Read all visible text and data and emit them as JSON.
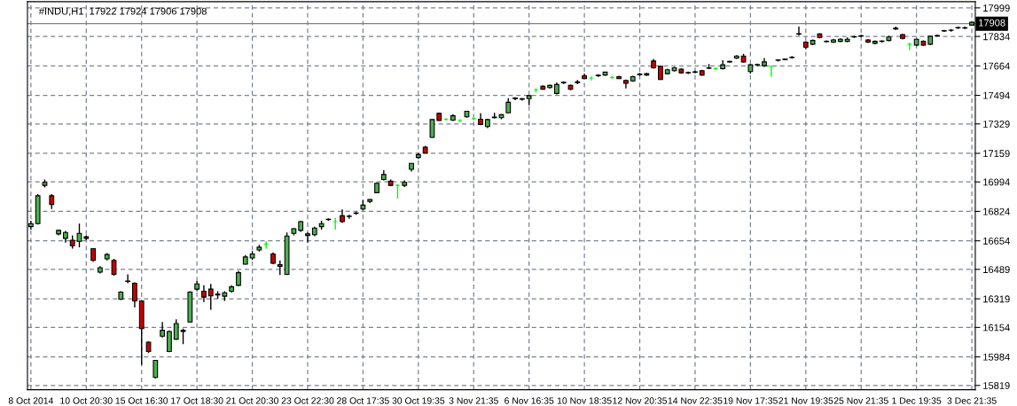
{
  "chart_data": {
    "type": "candlestick",
    "title": "#INDU,H1  17922 17924 17906 17908",
    "ylim": [
      15794,
      18035
    ],
    "yticks": [
      15819,
      15984,
      16154,
      16319,
      16489,
      16654,
      16824,
      16994,
      17159,
      17329,
      17494,
      17664,
      17834,
      17999
    ],
    "grid": true,
    "ref_lines": [
      {
        "axis": "y",
        "value": 17908,
        "label": "17908",
        "color": "#808080"
      }
    ],
    "categories": [
      "8 Oct 2014",
      null,
      null,
      null,
      null,
      null,
      null,
      null,
      "10 Oct 20:30",
      null,
      null,
      null,
      null,
      null,
      null,
      null,
      "15 Oct 16:30",
      null,
      null,
      null,
      null,
      null,
      null,
      null,
      "17 Oct 18:30",
      null,
      null,
      null,
      null,
      null,
      null,
      null,
      "21 Oct 20:30",
      null,
      null,
      null,
      null,
      null,
      null,
      null,
      "23 Oct 22:30",
      null,
      null,
      null,
      null,
      null,
      null,
      null,
      "28 Oct 17:35",
      null,
      null,
      null,
      null,
      null,
      null,
      null,
      "30 Oct 19:35",
      null,
      null,
      null,
      null,
      null,
      null,
      null,
      "3 Nov 21:35",
      null,
      null,
      null,
      null,
      null,
      null,
      null,
      "6 Nov 16:35",
      null,
      null,
      null,
      null,
      null,
      null,
      null,
      "10 Nov 18:35",
      null,
      null,
      null,
      null,
      null,
      null,
      null,
      "12 Nov 20:35",
      null,
      null,
      null,
      null,
      null,
      null,
      null,
      "14 Nov 22:35",
      null,
      null,
      null,
      null,
      null,
      null,
      null,
      "19 Nov 17:35",
      null,
      null,
      null,
      null,
      null,
      null,
      null,
      "21 Nov 19:35",
      null,
      null,
      null,
      null,
      null,
      null,
      null,
      "25 Nov 21:35",
      null,
      null,
      null,
      null,
      null,
      null,
      null,
      "1 Dec 19:35",
      null,
      null,
      null,
      null,
      null,
      null,
      null,
      "3 Dec 21:35"
    ],
    "ohlc": [
      [
        16736,
        16770,
        16719,
        16753
      ],
      [
        16753,
        16923,
        16748,
        16914
      ],
      [
        16974,
        17008,
        16962,
        16991
      ],
      [
        16914,
        16923,
        16838,
        16864
      ],
      [
        16694,
        16719,
        16685,
        16714
      ],
      [
        16668,
        16711,
        16643,
        16702
      ],
      [
        16657,
        16685,
        16609,
        16626
      ],
      [
        16651,
        16753,
        16617,
        16697
      ],
      [
        16677,
        16685,
        16657,
        16668
      ],
      [
        16609,
        16609,
        16533,
        16541
      ],
      [
        16473,
        16507,
        16465,
        16499
      ],
      [
        16550,
        16583,
        16541,
        16575
      ],
      [
        16541,
        16550,
        16453,
        16460
      ],
      [
        16317,
        16363,
        16312,
        16358
      ],
      [
        16419,
        16460,
        16409,
        16422
      ],
      [
        16409,
        16414,
        16270,
        16307
      ],
      [
        16307,
        16312,
        15938,
        16147
      ],
      [
        16069,
        16074,
        16006,
        16015
      ],
      [
        15865,
        15967,
        15859,
        15964
      ],
      [
        16103,
        16185,
        16096,
        16137
      ],
      [
        16015,
        16137,
        16011,
        16130
      ],
      [
        16086,
        16201,
        16083,
        16176
      ],
      [
        16137,
        16147,
        16057,
        16130
      ],
      [
        16185,
        16363,
        16181,
        16358
      ],
      [
        16375,
        16422,
        16363,
        16405
      ],
      [
        16363,
        16397,
        16300,
        16329
      ],
      [
        16375,
        16405,
        16256,
        16337
      ],
      [
        16341,
        16363,
        16320,
        16346
      ],
      [
        16334,
        16363,
        16307,
        16354
      ],
      [
        16363,
        16397,
        16354,
        16388
      ],
      [
        16397,
        16481,
        16392,
        16470
      ],
      [
        16519,
        16572,
        16516,
        16561
      ],
      [
        16555,
        16595,
        16544,
        16578
      ],
      [
        16601,
        16631,
        16592,
        16617
      ],
      [
        16635,
        16652,
        16609,
        16635
      ],
      [
        16578,
        16587,
        16519,
        16524
      ],
      [
        16507,
        16541,
        16456,
        16516
      ],
      [
        16460,
        16702,
        16456,
        16682
      ],
      [
        16697,
        16728,
        16685,
        16724
      ],
      [
        16714,
        16770,
        16706,
        16765
      ],
      [
        16685,
        16702,
        16643,
        16694
      ],
      [
        16689,
        16736,
        16680,
        16728
      ],
      [
        16736,
        16770,
        16719,
        16753
      ],
      [
        16777,
        16784,
        16770,
        16779
      ],
      [
        16765,
        16787,
        16719,
        16765
      ],
      [
        16799,
        16835,
        16757,
        16765
      ],
      [
        16795,
        16804,
        16782,
        16797
      ],
      [
        16812,
        16821,
        16804,
        16814
      ],
      [
        16838,
        16889,
        16830,
        16860
      ],
      [
        16881,
        16894,
        16872,
        16892
      ],
      [
        16932,
        16991,
        16928,
        16986
      ],
      [
        17008,
        17062,
        17003,
        17037
      ],
      [
        16999,
        17008,
        16969,
        16974
      ],
      [
        16974,
        16982,
        16898,
        16974
      ],
      [
        16974,
        17003,
        16965,
        16991
      ],
      [
        17067,
        17103,
        17054,
        17101
      ],
      [
        17135,
        17160,
        17127,
        17152
      ],
      [
        17194,
        17203,
        17160,
        17161
      ],
      [
        17251,
        17356,
        17249,
        17354
      ],
      [
        17390,
        17395,
        17347,
        17349
      ],
      [
        17356,
        17362,
        17348,
        17356
      ],
      [
        17351,
        17385,
        17346,
        17376
      ],
      [
        17348,
        17356,
        17339,
        17348
      ],
      [
        17370,
        17405,
        17365,
        17402
      ],
      [
        17359,
        17368,
        17351,
        17359
      ],
      [
        17356,
        17390,
        17322,
        17326
      ],
      [
        17314,
        17358,
        17305,
        17354
      ],
      [
        17365,
        17393,
        17360,
        17368
      ],
      [
        17365,
        17385,
        17356,
        17382
      ],
      [
        17393,
        17478,
        17390,
        17454
      ],
      [
        17475,
        17483,
        17466,
        17478
      ],
      [
        17471,
        17478,
        17464,
        17475
      ],
      [
        17475,
        17496,
        17437,
        17492
      ],
      [
        17526,
        17535,
        17511,
        17526
      ],
      [
        17546,
        17552,
        17526,
        17529
      ],
      [
        17539,
        17556,
        17533,
        17551
      ],
      [
        17505,
        17568,
        17499,
        17556
      ],
      [
        17566,
        17575,
        17560,
        17570
      ],
      [
        17551,
        17556,
        17524,
        17529
      ],
      [
        17568,
        17582,
        17558,
        17572
      ],
      [
        17607,
        17620,
        17590,
        17590
      ],
      [
        17594,
        17603,
        17580,
        17594
      ],
      [
        17607,
        17616,
        17600,
        17610
      ],
      [
        17611,
        17629,
        17607,
        17628
      ],
      [
        17597,
        17604,
        17590,
        17597
      ],
      [
        17602,
        17607,
        17590,
        17590
      ],
      [
        17580,
        17585,
        17534,
        17563
      ],
      [
        17577,
        17607,
        17572,
        17602
      ],
      [
        17614,
        17624,
        17607,
        17617
      ],
      [
        17611,
        17624,
        17607,
        17619
      ],
      [
        17692,
        17704,
        17648,
        17653
      ],
      [
        17662,
        17665,
        17585,
        17585
      ],
      [
        17619,
        17648,
        17614,
        17641
      ],
      [
        17636,
        17658,
        17631,
        17653
      ],
      [
        17645,
        17650,
        17619,
        17624
      ],
      [
        17624,
        17631,
        17617,
        17626
      ],
      [
        17628,
        17636,
        17621,
        17630
      ],
      [
        17636,
        17641,
        17607,
        17611
      ],
      [
        17650,
        17675,
        17645,
        17653
      ],
      [
        17648,
        17655,
        17640,
        17648
      ],
      [
        17648,
        17696,
        17643,
        17670
      ],
      [
        17687,
        17694,
        17682,
        17690
      ],
      [
        17709,
        17726,
        17704,
        17721
      ],
      [
        17721,
        17733,
        17684,
        17687
      ],
      [
        17631,
        17675,
        17619,
        17670
      ],
      [
        17670,
        17677,
        17663,
        17672
      ],
      [
        17665,
        17709,
        17658,
        17687
      ],
      [
        17662,
        17665,
        17602,
        17662
      ],
      [
        17696,
        17701,
        17689,
        17699
      ],
      [
        17701,
        17707,
        17696,
        17704
      ],
      [
        17712,
        17721,
        17706,
        17714
      ],
      [
        17850,
        17891,
        17840,
        17848
      ],
      [
        17801,
        17806,
        17760,
        17772
      ],
      [
        17789,
        17816,
        17784,
        17811
      ],
      [
        17848,
        17852,
        17823,
        17828
      ],
      [
        17806,
        17811,
        17799,
        17804
      ],
      [
        17801,
        17820,
        17796,
        17814
      ],
      [
        17806,
        17823,
        17801,
        17818
      ],
      [
        17806,
        17828,
        17801,
        17818
      ],
      [
        17831,
        17838,
        17826,
        17833
      ],
      [
        17836,
        17843,
        17831,
        17838
      ],
      [
        17814,
        17818,
        17796,
        17801
      ],
      [
        17794,
        17811,
        17789,
        17806
      ],
      [
        17806,
        17811,
        17799,
        17808
      ],
      [
        17811,
        17838,
        17806,
        17831
      ],
      [
        17882,
        17891,
        17872,
        17877
      ],
      [
        17845,
        17848,
        17816,
        17823
      ],
      [
        17789,
        17797,
        17755,
        17789
      ],
      [
        17784,
        17821,
        17780,
        17818
      ],
      [
        17806,
        17811,
        17780,
        17784
      ],
      [
        17789,
        17836,
        17784,
        17835
      ],
      [
        17838,
        17845,
        17833,
        17840
      ],
      [
        17865,
        17872,
        17860,
        17867
      ],
      [
        17869,
        17877,
        17862,
        17870
      ],
      [
        17886,
        17891,
        17877,
        17884
      ],
      [
        17882,
        17891,
        17877,
        17884
      ],
      [
        17899,
        17918,
        17896,
        17916
      ]
    ],
    "colors": [
      "#4caf50",
      "#4caf50",
      "#4caf50",
      "#cc0000",
      "#4caf50",
      "#4caf50",
      "#cc0000",
      "#4caf50",
      "#cc0000",
      "#cc0000",
      "#4caf50",
      "#4caf50",
      "#cc0000",
      "#4caf50",
      "#4caf50",
      "#cc0000",
      "#cc0000",
      "#cc0000",
      "#4caf50",
      "#4caf50",
      "#4caf50",
      "#4caf50",
      "#cc0000",
      "#4caf50",
      "#4caf50",
      "#cc0000",
      "#cc0000",
      "#4caf50",
      "#4caf50",
      "#4caf50",
      "#4caf50",
      "#4caf50",
      "#4caf50",
      "#4caf50",
      "#00ff00",
      "#cc0000",
      "#4caf50",
      "#4caf50",
      "#4caf50",
      "#4caf50",
      "#4caf50",
      "#4caf50",
      "#4caf50",
      "#4caf50",
      "#00ff00",
      "#cc0000",
      "#4caf50",
      "#4caf50",
      "#4caf50",
      "#4caf50",
      "#4caf50",
      "#4caf50",
      "#cc0000",
      "#00ff00",
      "#4caf50",
      "#4caf50",
      "#4caf50",
      "#cc0000",
      "#4caf50",
      "#cc0000",
      "#00ff00",
      "#4caf50",
      "#00ff00",
      "#4caf50",
      "#00ff00",
      "#cc0000",
      "#4caf50",
      "#4caf50",
      "#4caf50",
      "#4caf50",
      "#4caf50",
      "#4caf50",
      "#4caf50",
      "#00ff00",
      "#cc0000",
      "#4caf50",
      "#4caf50",
      "#4caf50",
      "#cc0000",
      "#4caf50",
      "#cc0000",
      "#00ff00",
      "#4caf50",
      "#4caf50",
      "#00ff00",
      "#cc0000",
      "#cc0000",
      "#4caf50",
      "#4caf50",
      "#4caf50",
      "#cc0000",
      "#cc0000",
      "#4caf50",
      "#4caf50",
      "#cc0000",
      "#4caf50",
      "#4caf50",
      "#cc0000",
      "#4caf50",
      "#00ff00",
      "#4caf50",
      "#4caf50",
      "#4caf50",
      "#cc0000",
      "#4caf50",
      "#4caf50",
      "#4caf50",
      "#00ff00",
      "#4caf50",
      "#4caf50",
      "#4caf50",
      "#cc0000",
      "#cc0000",
      "#4caf50",
      "#cc0000",
      "#cc0000",
      "#4caf50",
      "#4caf50",
      "#4caf50",
      "#4caf50",
      "#4caf50",
      "#cc0000",
      "#4caf50",
      "#4caf50",
      "#4caf50",
      "#cc0000",
      "#cc0000",
      "#00ff00",
      "#4caf50",
      "#cc0000",
      "#4caf50",
      "#4caf50",
      "#4caf50",
      "#4caf50",
      "#cc0000",
      "#4caf50",
      "#4caf50"
    ]
  }
}
